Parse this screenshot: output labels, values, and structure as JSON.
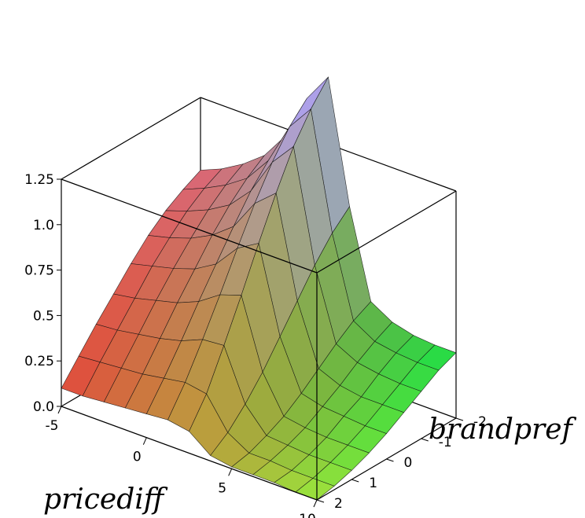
{
  "chart_data": {
    "type": "surface3d",
    "title": "",
    "xlabel": "pricediff",
    "ylabel": "brandpref",
    "zlabel": "",
    "x_ticks": [
      -5,
      0,
      5,
      10
    ],
    "y_ticks": [
      -2,
      -1,
      0,
      1,
      2
    ],
    "z_ticks": [
      "0.0",
      "0.25",
      "0.5",
      "0.75",
      "1.0",
      "1.25"
    ],
    "xlim": [
      -5,
      10
    ],
    "ylim": [
      -2,
      2
    ],
    "zlim": [
      0,
      1.25
    ],
    "surface": {
      "x_grid": [
        -5,
        -3.75,
        -2.5,
        -1.25,
        0,
        1.25,
        2.5,
        3.75,
        5,
        6.25,
        7.5,
        8.75,
        10
      ],
      "y_grid": [
        2,
        1.5,
        1,
        0.5,
        0,
        -0.5,
        -1,
        -1.5,
        -2
      ],
      "z_rows": [
        [
          0.1,
          0.1,
          0.11,
          0.12,
          0.13,
          0.14,
          0.12,
          0.03,
          0.01,
          0.01,
          0.01,
          0.0,
          0.0
        ],
        [
          0.22,
          0.23,
          0.24,
          0.25,
          0.27,
          0.29,
          0.27,
          0.1,
          0.03,
          0.03,
          0.02,
          0.02,
          0.02
        ],
        [
          0.34,
          0.35,
          0.37,
          0.39,
          0.42,
          0.47,
          0.48,
          0.2,
          0.07,
          0.06,
          0.05,
          0.05,
          0.05
        ],
        [
          0.45,
          0.47,
          0.5,
          0.53,
          0.58,
          0.66,
          0.7,
          0.32,
          0.12,
          0.1,
          0.09,
          0.09,
          0.09
        ],
        [
          0.56,
          0.59,
          0.62,
          0.66,
          0.73,
          0.86,
          0.93,
          0.46,
          0.19,
          0.16,
          0.15,
          0.14,
          0.14
        ],
        [
          0.66,
          0.69,
          0.73,
          0.79,
          0.88,
          1.05,
          1.15,
          0.6,
          0.27,
          0.22,
          0.2,
          0.2,
          0.2
        ],
        [
          0.74,
          0.78,
          0.83,
          0.9,
          1.02,
          1.22,
          1.35,
          0.74,
          0.35,
          0.29,
          0.27,
          0.26,
          0.26
        ],
        [
          0.8,
          0.85,
          0.91,
          0.99,
          1.13,
          1.36,
          1.5,
          0.86,
          0.42,
          0.35,
          0.33,
          0.32,
          0.32
        ],
        [
          0.85,
          0.9,
          0.97,
          1.06,
          1.21,
          1.46,
          1.62,
          0.95,
          0.47,
          0.4,
          0.37,
          0.36,
          0.36
        ]
      ]
    },
    "grid": false,
    "legend": "none"
  }
}
